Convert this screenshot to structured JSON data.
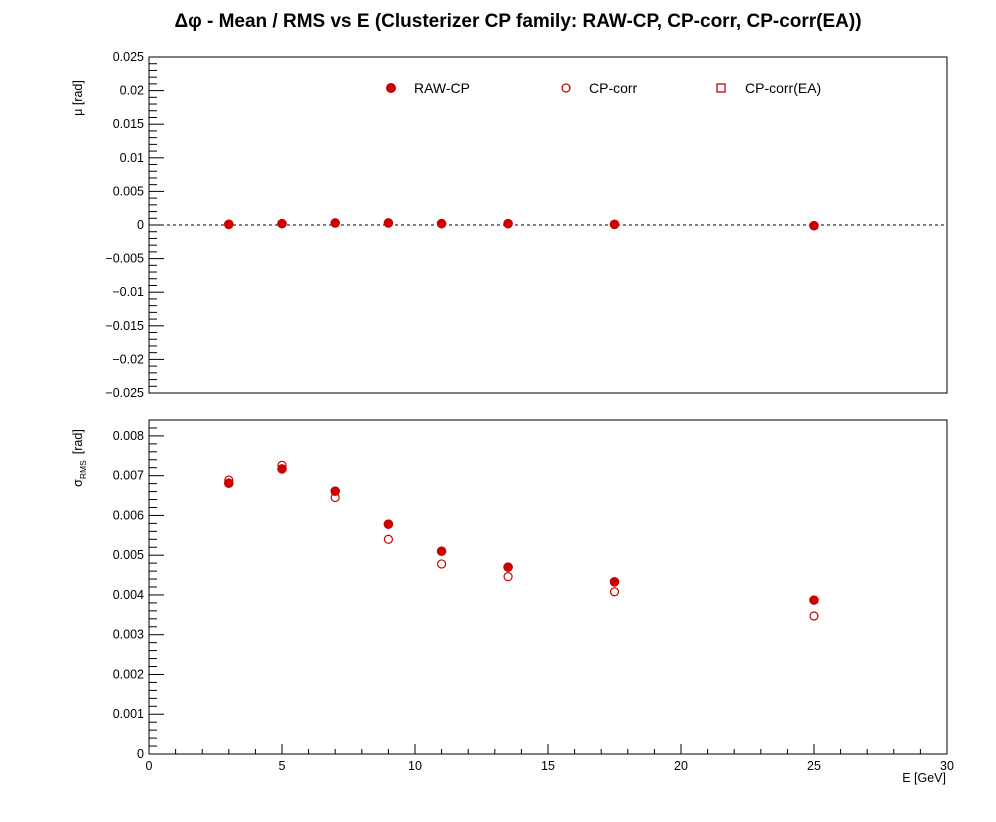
{
  "title": "Δφ  -  Mean / RMS vs E  (Clusterizer CP family: RAW-CP, CP-corr, CP-corr(EA))",
  "colors": {
    "marker": "#cc0000",
    "axis": "#000000",
    "zero_line": "#000000"
  },
  "chart_data": [
    {
      "type": "scatter",
      "panel": "top",
      "ylabel": "μ  [rad]",
      "xlim": [
        0,
        30
      ],
      "ylim": [
        -0.025,
        0.025
      ],
      "yticks": [
        0.025,
        0.02,
        0.015,
        0.01,
        0.005,
        0,
        -0.005,
        -0.01,
        -0.015,
        -0.02,
        -0.025
      ],
      "ytick_labels": [
        "0.025",
        "0.02",
        "0.015",
        "0.01",
        "0.005",
        "0",
        "−0.005",
        "−0.01",
        "−0.015",
        "−0.02",
        "−0.025"
      ],
      "reference_line": 0,
      "legend": [
        "RAW-CP",
        "CP-corr",
        "CP-corr(EA)"
      ],
      "legend_markers": [
        "filled-circle",
        "open-circle",
        "open-square"
      ],
      "series": [
        {
          "name": "RAW-CP",
          "marker": "filled-circle",
          "x": [
            3,
            5,
            7,
            9,
            11,
            13.5,
            17.5,
            25
          ],
          "y": [
            0.0001,
            0.0002,
            0.0003,
            0.0003,
            0.0002,
            0.0002,
            0.0001,
            -0.0001
          ]
        },
        {
          "name": "CP-corr",
          "marker": "open-circle",
          "x": [
            3,
            5,
            7,
            9,
            11,
            13.5,
            17.5,
            25
          ],
          "y": [
            0.0001,
            0.0002,
            0.0003,
            0.0003,
            0.0002,
            0.0002,
            0.0001,
            -0.0001
          ]
        },
        {
          "name": "CP-corr(EA)",
          "marker": "open-square",
          "x": [],
          "y": []
        }
      ]
    },
    {
      "type": "scatter",
      "panel": "bottom",
      "ylabel": "σ",
      "ylabel_sub": "RMS",
      "ylabel_unit": "[rad]",
      "xlabel": "E  [GeV]",
      "xlim": [
        0,
        30
      ],
      "ylim": [
        0,
        0.0084
      ],
      "xticks": [
        0,
        5,
        10,
        15,
        20,
        25,
        30
      ],
      "xtick_labels": [
        "0",
        "5",
        "10",
        "15",
        "20",
        "25",
        "30"
      ],
      "yticks": [
        0,
        0.001,
        0.002,
        0.003,
        0.004,
        0.005,
        0.006,
        0.007,
        0.008
      ],
      "ytick_labels": [
        "0",
        "0.001",
        "0.002",
        "0.003",
        "0.004",
        "0.005",
        "0.006",
        "0.007",
        "0.008"
      ],
      "series": [
        {
          "name": "RAW-CP",
          "marker": "filled-circle",
          "x": [
            3,
            5,
            7,
            9,
            11,
            13.5,
            17.5,
            25
          ],
          "y": [
            0.00681,
            0.00717,
            0.00661,
            0.00578,
            0.0051,
            0.0047,
            0.00433,
            0.00387
          ]
        },
        {
          "name": "CP-corr",
          "marker": "open-circle",
          "x": [
            3,
            5,
            7,
            9,
            11,
            13.5,
            17.5,
            25
          ],
          "y": [
            0.00689,
            0.00726,
            0.00645,
            0.0054,
            0.00478,
            0.00446,
            0.00408,
            0.00347
          ]
        }
      ]
    }
  ]
}
